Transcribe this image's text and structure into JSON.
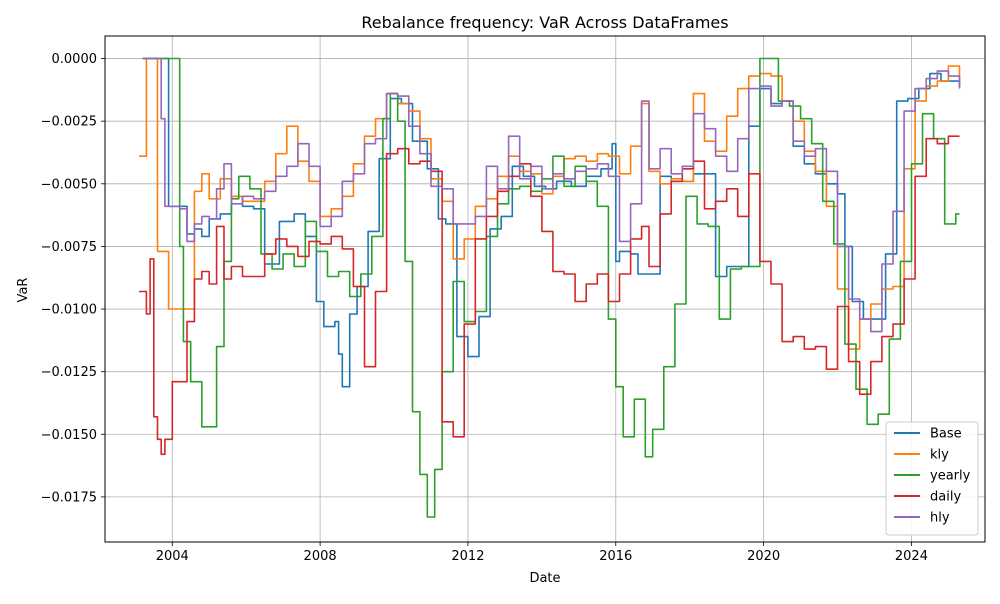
{
  "chart_data": {
    "type": "line",
    "title": "Rebalance frequency: VaR Across DataFrames",
    "xlabel": "Date",
    "ylabel": "VaR",
    "x_tick_labels": [
      "2004",
      "2008",
      "2012",
      "2016",
      "2020",
      "2024"
    ],
    "y_tick_labels": [
      "0.0000",
      "−0.0025",
      "−0.0050",
      "−0.0075",
      "−0.0100",
      "−0.0125",
      "−0.0150",
      "−0.0175"
    ],
    "y_ticks": [
      0.0,
      -0.0025,
      -0.005,
      -0.0075,
      -0.01,
      -0.0125,
      -0.015,
      -0.0175
    ],
    "xlim": [
      2002.18,
      2025.99
    ],
    "ylim": [
      -0.0193,
      0.0009
    ],
    "grid": true,
    "legend_position": "lower-right",
    "series": [
      {
        "name": "Base",
        "color": "#1f77b4",
        "x": [
          2003.2,
          2003.7,
          2003.9,
          2004.2,
          2004.4,
          2004.6,
          2004.8,
          2005.0,
          2005.3,
          2005.6,
          2005.9,
          2006.2,
          2006.5,
          2006.9,
          2007.3,
          2007.6,
          2007.9,
          2008.1,
          2008.4,
          2008.5,
          2008.6,
          2008.8,
          2009.0,
          2009.3,
          2009.6,
          2009.9,
          2010.2,
          2010.5,
          2010.9,
          2011.2,
          2011.4,
          2011.7,
          2012.0,
          2012.3,
          2012.6,
          2012.9,
          2013.2,
          2013.5,
          2013.8,
          2014.1,
          2014.4,
          2014.8,
          2015.2,
          2015.6,
          2015.9,
          2016.0,
          2016.1,
          2016.4,
          2016.6,
          2016.9,
          2017.2,
          2017.5,
          2017.8,
          2018.1,
          2018.4,
          2018.7,
          2019.0,
          2019.3,
          2019.6,
          2019.9,
          2020.2,
          2020.5,
          2020.8,
          2021.1,
          2021.4,
          2021.7,
          2022.0,
          2022.2,
          2022.4,
          2022.7,
          2023.0,
          2023.3,
          2023.6,
          2023.9,
          2024.2,
          2024.5,
          2024.8,
          2025.1,
          2025.3
        ],
        "y": [
          0.0,
          0.0,
          -0.0059,
          -0.0059,
          -0.007,
          -0.0068,
          -0.0071,
          -0.0064,
          -0.0062,
          -0.0055,
          -0.0059,
          -0.006,
          -0.0082,
          -0.0065,
          -0.0062,
          -0.0071,
          -0.0097,
          -0.0107,
          -0.0105,
          -0.0118,
          -0.0131,
          -0.0102,
          -0.0091,
          -0.0069,
          -0.004,
          -0.0016,
          -0.0018,
          -0.0033,
          -0.0044,
          -0.0064,
          -0.0066,
          -0.0111,
          -0.0119,
          -0.0103,
          -0.0068,
          -0.0063,
          -0.0043,
          -0.0047,
          -0.0051,
          -0.0052,
          -0.0049,
          -0.0051,
          -0.0047,
          -0.0044,
          -0.0034,
          -0.0081,
          -0.0077,
          -0.0078,
          -0.0086,
          -0.0086,
          -0.0047,
          -0.0049,
          -0.0049,
          -0.0046,
          -0.0046,
          -0.0087,
          -0.0083,
          -0.0083,
          -0.0027,
          -0.0012,
          -0.0018,
          -0.0017,
          -0.0035,
          -0.0042,
          -0.0046,
          -0.005,
          -0.0054,
          -0.0075,
          -0.0097,
          -0.0104,
          -0.0104,
          -0.0078,
          -0.0017,
          -0.0016,
          -0.0012,
          -0.0006,
          -0.0009,
          -0.0009,
          -0.0011
        ]
      },
      {
        "name": "kly",
        "color": "#ff7f0e",
        "x": [
          2003.1,
          2003.3,
          2003.4,
          2003.6,
          2003.9,
          2004.2,
          2004.4,
          2004.6,
          2004.8,
          2005.0,
          2005.3,
          2005.6,
          2005.9,
          2006.2,
          2006.5,
          2006.8,
          2007.1,
          2007.4,
          2007.7,
          2008.0,
          2008.3,
          2008.6,
          2008.9,
          2009.2,
          2009.5,
          2009.8,
          2010.1,
          2010.4,
          2010.7,
          2011.0,
          2011.3,
          2011.6,
          2011.9,
          2012.2,
          2012.5,
          2012.8,
          2013.1,
          2013.4,
          2013.7,
          2014.0,
          2014.3,
          2014.6,
          2014.9,
          2015.2,
          2015.5,
          2015.8,
          2016.1,
          2016.4,
          2016.7,
          2016.9,
          2017.2,
          2017.5,
          2017.8,
          2018.1,
          2018.4,
          2018.7,
          2019.0,
          2019.3,
          2019.6,
          2019.9,
          2020.2,
          2020.5,
          2020.8,
          2021.1,
          2021.4,
          2021.7,
          2022.0,
          2022.3,
          2022.6,
          2022.9,
          2023.2,
          2023.5,
          2023.8,
          2024.1,
          2024.4,
          2024.7,
          2025.0,
          2025.3
        ],
        "y": [
          -0.0039,
          0.0,
          0.0,
          -0.0077,
          -0.01,
          -0.01,
          -0.01,
          -0.0053,
          -0.0046,
          -0.0056,
          -0.0048,
          -0.0055,
          -0.0057,
          -0.0057,
          -0.0049,
          -0.0038,
          -0.0027,
          -0.0041,
          -0.0049,
          -0.0063,
          -0.006,
          -0.0055,
          -0.0042,
          -0.0031,
          -0.0024,
          -0.0014,
          -0.0018,
          -0.0021,
          -0.0032,
          -0.0048,
          -0.0057,
          -0.008,
          -0.0072,
          -0.0059,
          -0.0056,
          -0.0047,
          -0.0039,
          -0.0045,
          -0.0046,
          -0.0054,
          -0.0047,
          -0.004,
          -0.0039,
          -0.0041,
          -0.0038,
          -0.0039,
          -0.0046,
          -0.0035,
          -0.0018,
          -0.0045,
          -0.005,
          -0.0048,
          -0.0049,
          -0.0014,
          -0.0033,
          -0.0037,
          -0.0023,
          -0.0012,
          -0.0007,
          -0.0006,
          -0.0007,
          -0.0017,
          -0.0025,
          -0.0037,
          -0.0045,
          -0.0059,
          -0.0092,
          -0.0116,
          -0.0104,
          -0.0098,
          -0.0092,
          -0.0091,
          -0.0044,
          -0.0017,
          -0.0011,
          -0.0009,
          -0.0003,
          -0.0011
        ]
      },
      {
        "name": "yearly",
        "color": "#2ca02c",
        "x": [
          2003.2,
          2003.8,
          2004.0,
          2004.2,
          2004.3,
          2004.5,
          2004.8,
          2005.0,
          2005.2,
          2005.4,
          2005.6,
          2005.8,
          2006.1,
          2006.4,
          2006.7,
          2007.0,
          2007.3,
          2007.6,
          2007.9,
          2008.2,
          2008.5,
          2008.8,
          2009.1,
          2009.4,
          2009.7,
          2009.9,
          2010.1,
          2010.3,
          2010.5,
          2010.7,
          2010.9,
          2011.1,
          2011.3,
          2011.6,
          2011.9,
          2012.2,
          2012.5,
          2012.8,
          2013.1,
          2013.4,
          2013.7,
          2014.0,
          2014.3,
          2014.6,
          2014.9,
          2015.2,
          2015.5,
          2015.8,
          2016.0,
          2016.2,
          2016.5,
          2016.8,
          2017.0,
          2017.3,
          2017.6,
          2017.9,
          2018.2,
          2018.5,
          2018.8,
          2019.1,
          2019.4,
          2019.7,
          2019.9,
          2020.1,
          2020.4,
          2020.7,
          2021.0,
          2021.3,
          2021.6,
          2021.9,
          2022.2,
          2022.5,
          2022.8,
          2023.1,
          2023.4,
          2023.7,
          2024.0,
          2024.3,
          2024.6,
          2024.9,
          2025.2,
          2025.3
        ],
        "y": [
          0.0,
          0.0,
          0.0,
          -0.0075,
          -0.0113,
          -0.0129,
          -0.0147,
          -0.0147,
          -0.0115,
          -0.0081,
          -0.0056,
          -0.0047,
          -0.0052,
          -0.0078,
          -0.0084,
          -0.0078,
          -0.0083,
          -0.0065,
          -0.0077,
          -0.0087,
          -0.0085,
          -0.0095,
          -0.0086,
          -0.0071,
          -0.0024,
          -0.0014,
          -0.0025,
          -0.0081,
          -0.0141,
          -0.0166,
          -0.0183,
          -0.0164,
          -0.0125,
          -0.0089,
          -0.0105,
          -0.0101,
          -0.0071,
          -0.0058,
          -0.0052,
          -0.0051,
          -0.0053,
          -0.0048,
          -0.0039,
          -0.0051,
          -0.0043,
          -0.0049,
          -0.0059,
          -0.0104,
          -0.0131,
          -0.0151,
          -0.0136,
          -0.0159,
          -0.0148,
          -0.0123,
          -0.0098,
          -0.0055,
          -0.0066,
          -0.0067,
          -0.0104,
          -0.0084,
          -0.0083,
          -0.0083,
          0.0,
          0.0,
          -0.0017,
          -0.0019,
          -0.0024,
          -0.0034,
          -0.0057,
          -0.0074,
          -0.0114,
          -0.0132,
          -0.0146,
          -0.0142,
          -0.0112,
          -0.0081,
          -0.0042,
          -0.0022,
          -0.0032,
          -0.0066,
          -0.0062,
          -0.0062
        ]
      },
      {
        "name": "daily",
        "color": "#d62728",
        "x": [
          2003.1,
          2003.3,
          2003.4,
          2003.5,
          2003.6,
          2003.7,
          2003.8,
          2004.0,
          2004.2,
          2004.4,
          2004.6,
          2004.8,
          2005.0,
          2005.2,
          2005.4,
          2005.6,
          2005.9,
          2006.2,
          2006.5,
          2006.8,
          2007.1,
          2007.4,
          2007.7,
          2008.0,
          2008.3,
          2008.6,
          2008.9,
          2009.2,
          2009.5,
          2009.8,
          2010.1,
          2010.4,
          2010.7,
          2011.0,
          2011.3,
          2011.6,
          2011.9,
          2012.2,
          2012.5,
          2012.8,
          2013.1,
          2013.4,
          2013.7,
          2014.0,
          2014.3,
          2014.6,
          2014.9,
          2015.2,
          2015.5,
          2015.8,
          2016.1,
          2016.4,
          2016.7,
          2016.9,
          2017.2,
          2017.5,
          2017.8,
          2018.1,
          2018.4,
          2018.7,
          2019.0,
          2019.3,
          2019.6,
          2019.9,
          2020.2,
          2020.5,
          2020.8,
          2021.1,
          2021.4,
          2021.7,
          2022.0,
          2022.3,
          2022.6,
          2022.9,
          2023.2,
          2023.5,
          2023.8,
          2024.1,
          2024.4,
          2024.7,
          2025.0,
          2025.3
        ],
        "y": [
          -0.0093,
          -0.0102,
          -0.008,
          -0.0143,
          -0.0152,
          -0.0158,
          -0.0152,
          -0.0129,
          -0.0129,
          -0.0105,
          -0.0088,
          -0.0085,
          -0.009,
          -0.0067,
          -0.0088,
          -0.0083,
          -0.0087,
          -0.0087,
          -0.0078,
          -0.0072,
          -0.0075,
          -0.0079,
          -0.0073,
          -0.0074,
          -0.0071,
          -0.0076,
          -0.0091,
          -0.0123,
          -0.0093,
          -0.0038,
          -0.0036,
          -0.0042,
          -0.0041,
          -0.0045,
          -0.0145,
          -0.0151,
          -0.0106,
          -0.0072,
          -0.0063,
          -0.0053,
          -0.0047,
          -0.0042,
          -0.0055,
          -0.0069,
          -0.0085,
          -0.0086,
          -0.0097,
          -0.009,
          -0.0086,
          -0.0097,
          -0.0086,
          -0.0072,
          -0.0067,
          -0.0083,
          -0.0062,
          -0.0049,
          -0.0044,
          -0.0041,
          -0.006,
          -0.0057,
          -0.0052,
          -0.0063,
          -0.0046,
          -0.0081,
          -0.009,
          -0.0113,
          -0.0111,
          -0.0116,
          -0.0115,
          -0.0124,
          -0.0099,
          -0.0121,
          -0.0134,
          -0.0121,
          -0.0111,
          -0.0106,
          -0.0088,
          -0.0047,
          -0.0032,
          -0.0034,
          -0.0031,
          -0.0031
        ]
      },
      {
        "name": "hly",
        "color": "#9467bd",
        "x": [
          2003.2,
          2003.6,
          2003.7,
          2003.8,
          2004.2,
          2004.4,
          2004.6,
          2004.8,
          2005.0,
          2005.2,
          2005.4,
          2005.6,
          2005.9,
          2006.2,
          2006.5,
          2006.8,
          2007.1,
          2007.4,
          2007.7,
          2008.0,
          2008.3,
          2008.6,
          2008.9,
          2009.2,
          2009.5,
          2009.8,
          2010.1,
          2010.4,
          2010.7,
          2011.0,
          2011.3,
          2011.6,
          2011.9,
          2012.2,
          2012.5,
          2012.8,
          2013.1,
          2013.4,
          2013.7,
          2014.0,
          2014.3,
          2014.6,
          2014.9,
          2015.2,
          2015.5,
          2015.8,
          2016.1,
          2016.4,
          2016.7,
          2016.9,
          2017.2,
          2017.5,
          2017.8,
          2018.1,
          2018.4,
          2018.7,
          2019.0,
          2019.3,
          2019.6,
          2019.9,
          2020.2,
          2020.5,
          2020.8,
          2021.1,
          2021.4,
          2021.7,
          2022.0,
          2022.3,
          2022.6,
          2022.9,
          2023.2,
          2023.5,
          2023.8,
          2024.1,
          2024.4,
          2024.7,
          2025.0,
          2025.3
        ],
        "y": [
          0.0,
          0.0,
          -0.0024,
          -0.0059,
          -0.006,
          -0.0073,
          -0.0066,
          -0.0063,
          -0.0064,
          -0.0052,
          -0.0042,
          -0.0058,
          -0.0055,
          -0.0056,
          -0.0053,
          -0.0047,
          -0.0043,
          -0.0034,
          -0.0043,
          -0.0067,
          -0.0063,
          -0.0049,
          -0.0046,
          -0.0034,
          -0.0032,
          -0.0014,
          -0.0015,
          -0.0027,
          -0.0038,
          -0.0051,
          -0.0052,
          -0.0066,
          -0.0066,
          -0.0063,
          -0.0043,
          -0.0052,
          -0.0031,
          -0.0048,
          -0.0043,
          -0.0052,
          -0.0046,
          -0.0048,
          -0.0045,
          -0.0044,
          -0.0042,
          -0.0047,
          -0.0073,
          -0.0058,
          -0.0017,
          -0.0044,
          -0.0036,
          -0.0046,
          -0.0043,
          -0.0022,
          -0.0028,
          -0.0039,
          -0.0045,
          -0.0032,
          -0.0012,
          -0.0011,
          -0.0019,
          -0.0017,
          -0.0033,
          -0.0039,
          -0.0036,
          -0.0045,
          -0.0075,
          -0.0096,
          -0.0104,
          -0.0109,
          -0.0082,
          -0.0061,
          -0.0021,
          -0.0012,
          -0.0008,
          -0.0005,
          -0.0007,
          -0.0012
        ]
      }
    ]
  }
}
